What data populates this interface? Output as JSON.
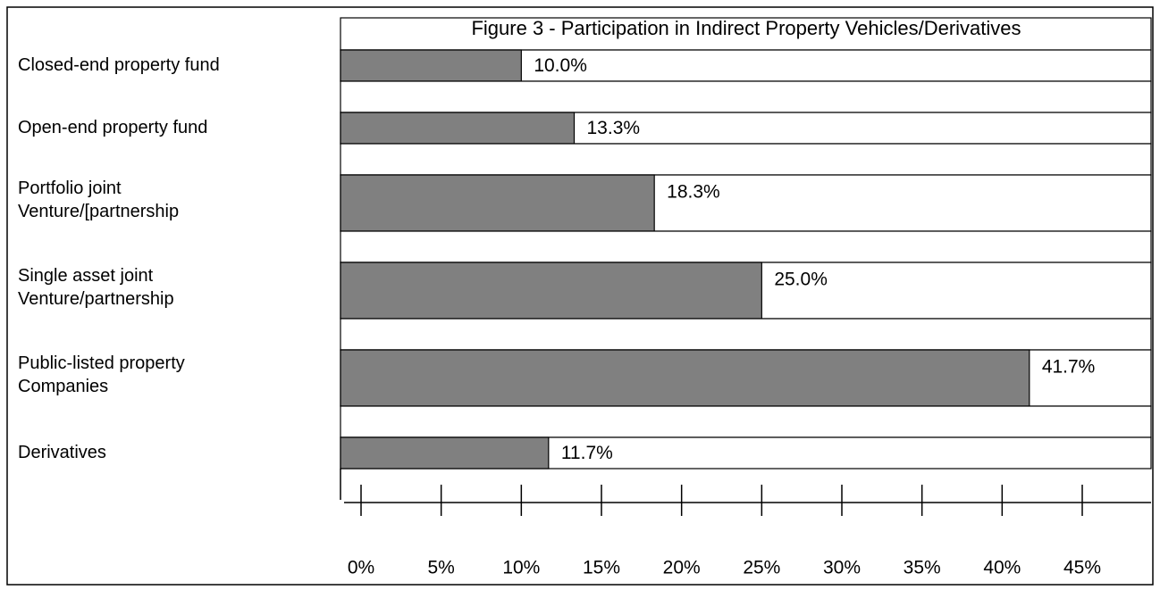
{
  "chart_data": {
    "type": "barh",
    "title": "Figure 3  -  Participation in Indirect Property Vehicles/Derivatives",
    "categories": [
      "Closed-end property fund",
      "Open-end property fund",
      "Portfolio joint\nVenture/[partnership",
      "Single asset joint\nVenture/partnership",
      "Public-listed property\nCompanies",
      "Derivatives"
    ],
    "values": [
      10.0,
      13.3,
      18.3,
      25.0,
      41.7,
      11.7
    ],
    "value_labels": [
      "10.0%",
      "13.3%",
      "18.3%",
      "25.0%",
      "41.7%",
      "11.7%"
    ],
    "color": "#808080",
    "xlim": [
      0,
      45
    ],
    "xticks": [
      {
        "value": 0,
        "label": "0%"
      },
      {
        "value": 5,
        "label": "5%"
      },
      {
        "value": 10,
        "label": "10%"
      },
      {
        "value": 15,
        "label": "15%"
      },
      {
        "value": 20,
        "label": "20%"
      },
      {
        "value": 25,
        "label": "25%"
      },
      {
        "value": 30,
        "label": "30%"
      },
      {
        "value": 35,
        "label": "35%"
      },
      {
        "value": 40,
        "label": "40%"
      },
      {
        "value": 45,
        "label": "45%"
      }
    ]
  }
}
